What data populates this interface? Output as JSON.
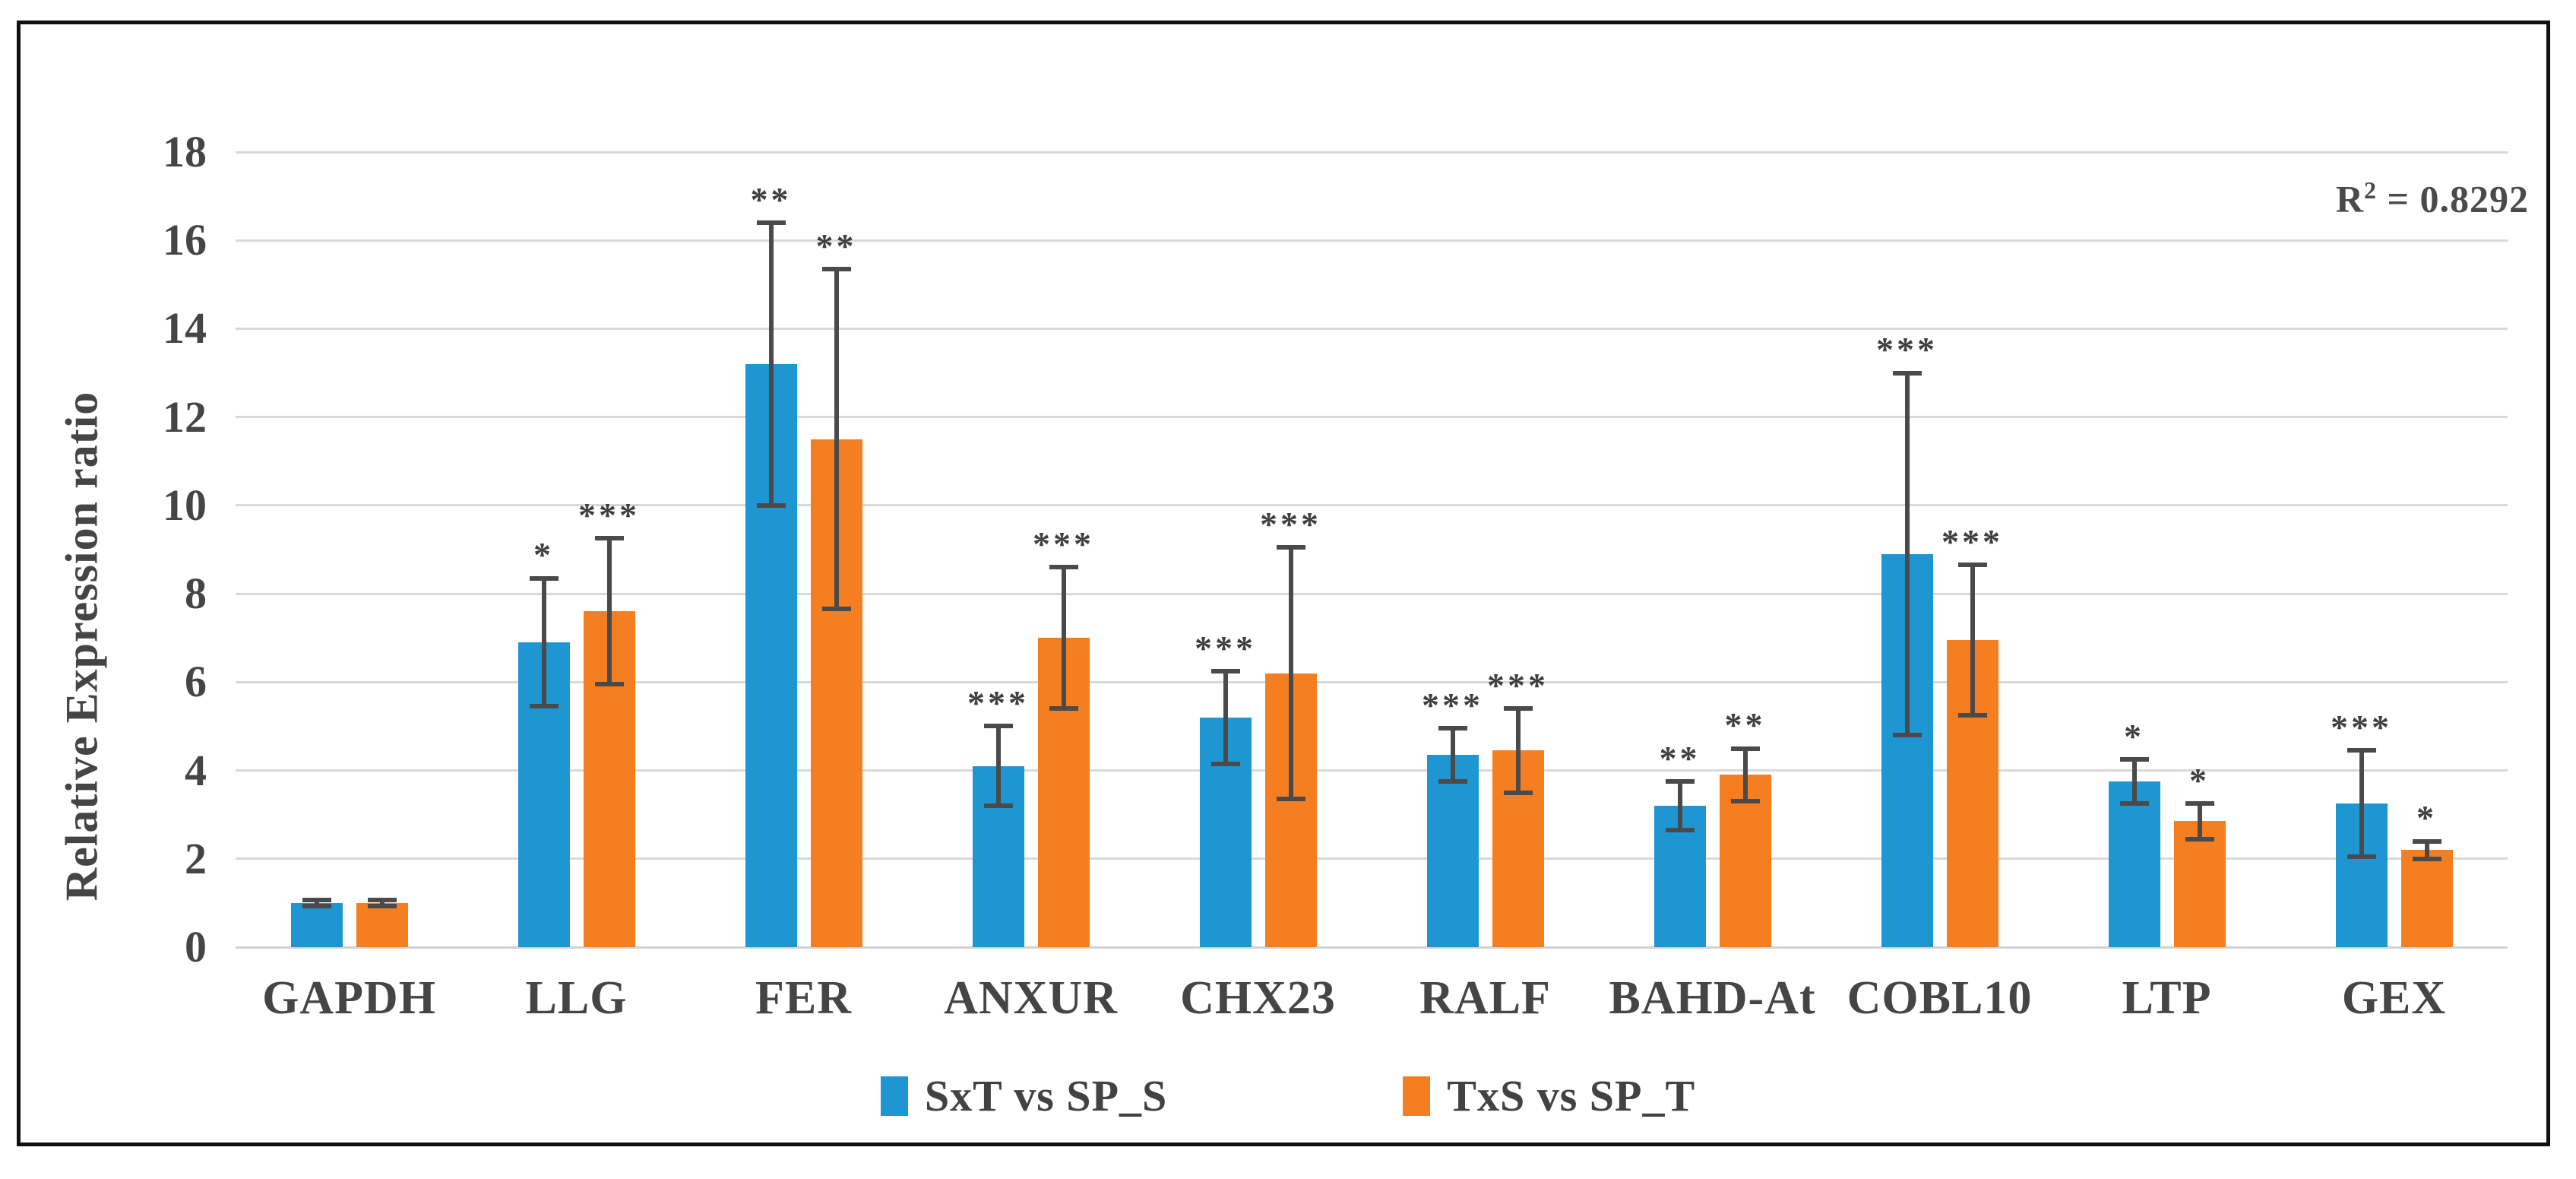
{
  "chart_data": {
    "type": "bar",
    "title": "",
    "xlabel": "",
    "ylabel": "Relative Expression ratio",
    "ylim": [
      0,
      18
    ],
    "yticks": [
      0,
      2,
      4,
      6,
      8,
      10,
      12,
      14,
      16,
      18
    ],
    "grid": true,
    "legend_position": "bottom",
    "categories": [
      "GAPDH",
      "LLG",
      "FER",
      "ANXUR",
      "CHX23",
      "RALF",
      "BAHD-At",
      "COBL10",
      "LTP",
      "GEX"
    ],
    "series": [
      {
        "name": "SxT vs SP_S",
        "color": "#1e96d2",
        "values": [
          1.0,
          6.9,
          13.2,
          4.1,
          5.2,
          4.35,
          3.2,
          8.9,
          3.75,
          3.25
        ],
        "errors": [
          0.07,
          1.45,
          3.2,
          0.9,
          1.05,
          0.6,
          0.55,
          4.1,
          0.5,
          1.2
        ],
        "stars": [
          "",
          "*",
          "**",
          "***",
          "***",
          "***",
          "**",
          "***",
          "*",
          "***"
        ]
      },
      {
        "name": "TxS vs SP_T",
        "color": "#f47e20",
        "values": [
          1.0,
          7.6,
          11.5,
          7.0,
          6.2,
          4.45,
          3.9,
          6.95,
          2.85,
          2.2
        ],
        "errors": [
          0.07,
          1.65,
          3.85,
          1.6,
          2.85,
          0.95,
          0.6,
          1.7,
          0.4,
          0.2
        ],
        "stars": [
          "",
          "***",
          "**",
          "***",
          "***",
          "***",
          "**",
          "***",
          "*",
          "*"
        ]
      }
    ],
    "annotation": {
      "base": "R",
      "sup": "2",
      "rest": " = 0.8292"
    },
    "error_bar_color": "#4a4a4a",
    "gridline_color": "#d9d9d9"
  }
}
